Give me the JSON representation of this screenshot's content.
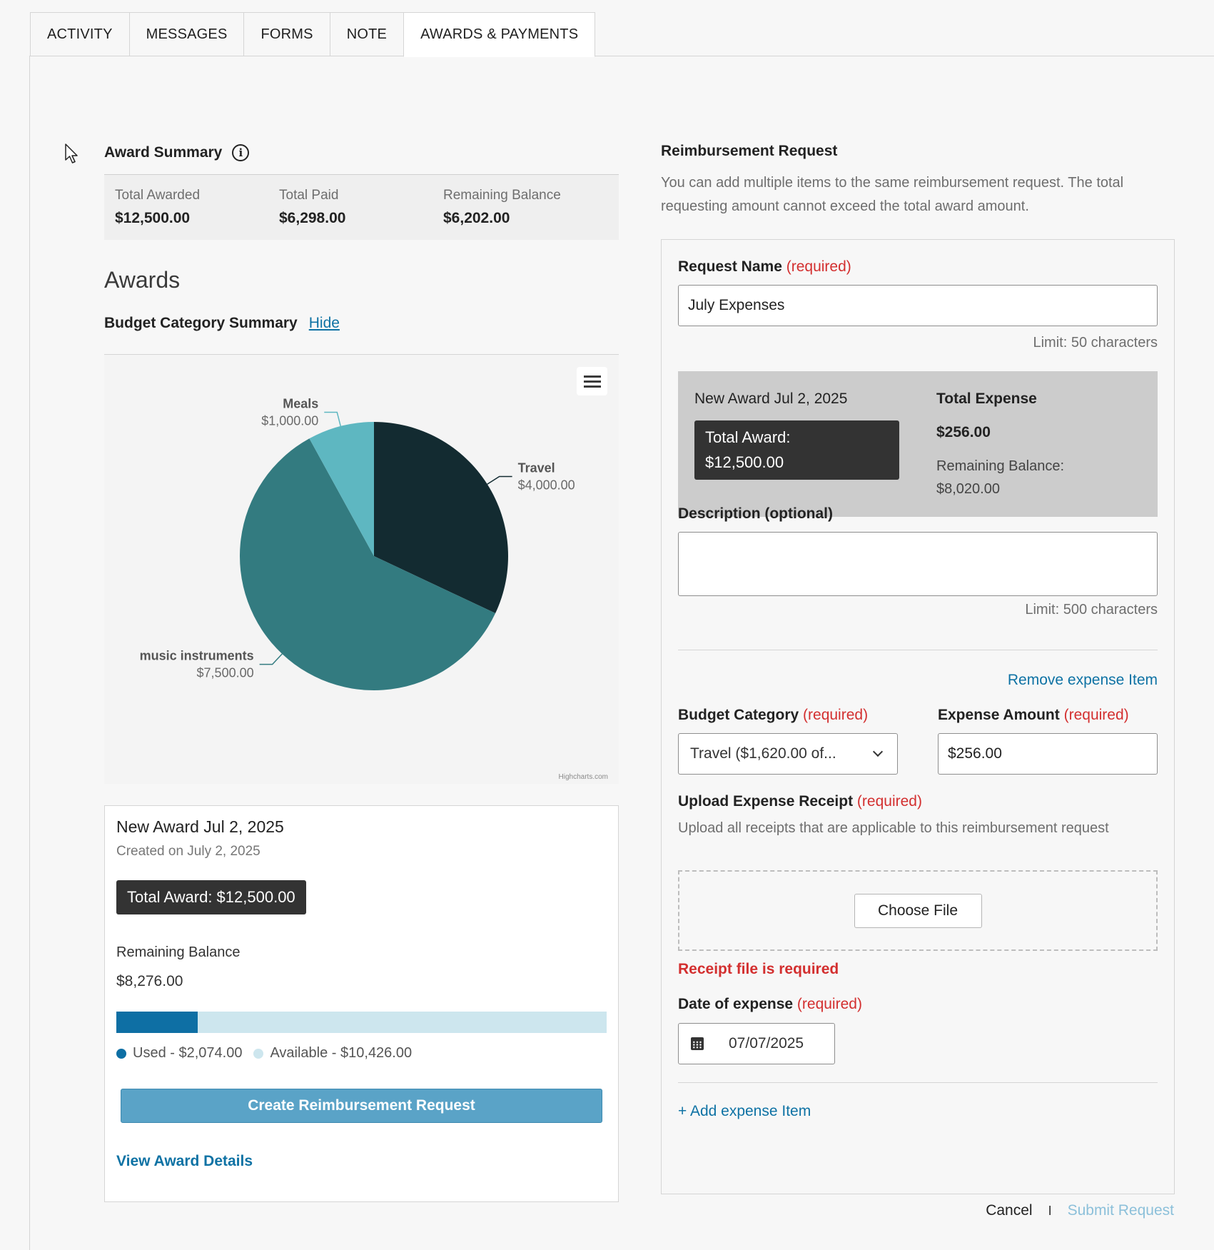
{
  "tabs": [
    {
      "label": "ACTIVITY"
    },
    {
      "label": "MESSAGES"
    },
    {
      "label": "FORMS"
    },
    {
      "label": "NOTE"
    },
    {
      "label": "AWARDS & PAYMENTS"
    }
  ],
  "award_summary": {
    "title": "Award Summary",
    "items": [
      {
        "label": "Total Awarded",
        "value": "$12,500.00"
      },
      {
        "label": "Total Paid",
        "value": "$6,298.00"
      },
      {
        "label": "Remaining Balance",
        "value": "$6,202.00"
      }
    ]
  },
  "awards": {
    "heading": "Awards",
    "budget_summary_label": "Budget Category Summary",
    "hide_label": "Hide",
    "chart_credit": "Highcharts.com"
  },
  "chart_data": {
    "type": "pie",
    "slices": [
      {
        "name": "Travel",
        "value": 4000,
        "label": "$4,000.00",
        "color": "#132b31"
      },
      {
        "name": "music instruments",
        "value": 7500,
        "label": "$7,500.00",
        "color": "#337b80"
      },
      {
        "name": "Meals",
        "value": 1000,
        "label": "$1,000.00",
        "color": "#5eb7c1"
      }
    ]
  },
  "award_card": {
    "title": "New Award Jul 2, 2025",
    "created": "Created on July 2, 2025",
    "total_award": "Total Award: $12,500.00",
    "remaining_label": "Remaining Balance",
    "remaining_value": "$8,276.00",
    "used_fraction": 0.166,
    "used_label": "Used - $2,074.00",
    "available_label": "Available - $10,426.00",
    "create_button": "Create Reimbursement Request",
    "view_details": "View Award Details"
  },
  "reimbursement": {
    "title": "Reimbursement Request",
    "description": "You can add multiple items to the same reimbursement request. The total requesting amount cannot exceed the total award amount.",
    "request_name_label": "Request Name",
    "required": "(required)",
    "request_name_value": "July Expenses",
    "request_name_limit": "Limit: 50 characters",
    "award_panel": {
      "title": "New Award Jul 2, 2025",
      "total_award_line1": "Total Award:",
      "total_award_line2": "$12,500.00",
      "total_expense_label": "Total Expense",
      "total_expense_value": "$256.00",
      "remaining_label": "Remaining Balance:",
      "remaining_value": "$8,020.00"
    },
    "description_label": "Description (optional)",
    "description_limit": "Limit: 500 characters",
    "remove_item": "Remove expense Item",
    "budget_category_label": "Budget Category",
    "budget_category_value": "Travel ($1,620.00 of...",
    "expense_amount_label": "Expense Amount",
    "expense_amount_value": "$256.00",
    "upload_label": "Upload Expense Receipt",
    "upload_help": "Upload all receipts that are applicable to this reimbursement request",
    "choose_file": "Choose File",
    "receipt_error": "Receipt file is required",
    "date_label": "Date of expense",
    "date_value": "07/07/2025",
    "add_item": "+ Add expense Item",
    "cancel": "Cancel",
    "separator": "I",
    "submit": "Submit Request"
  }
}
